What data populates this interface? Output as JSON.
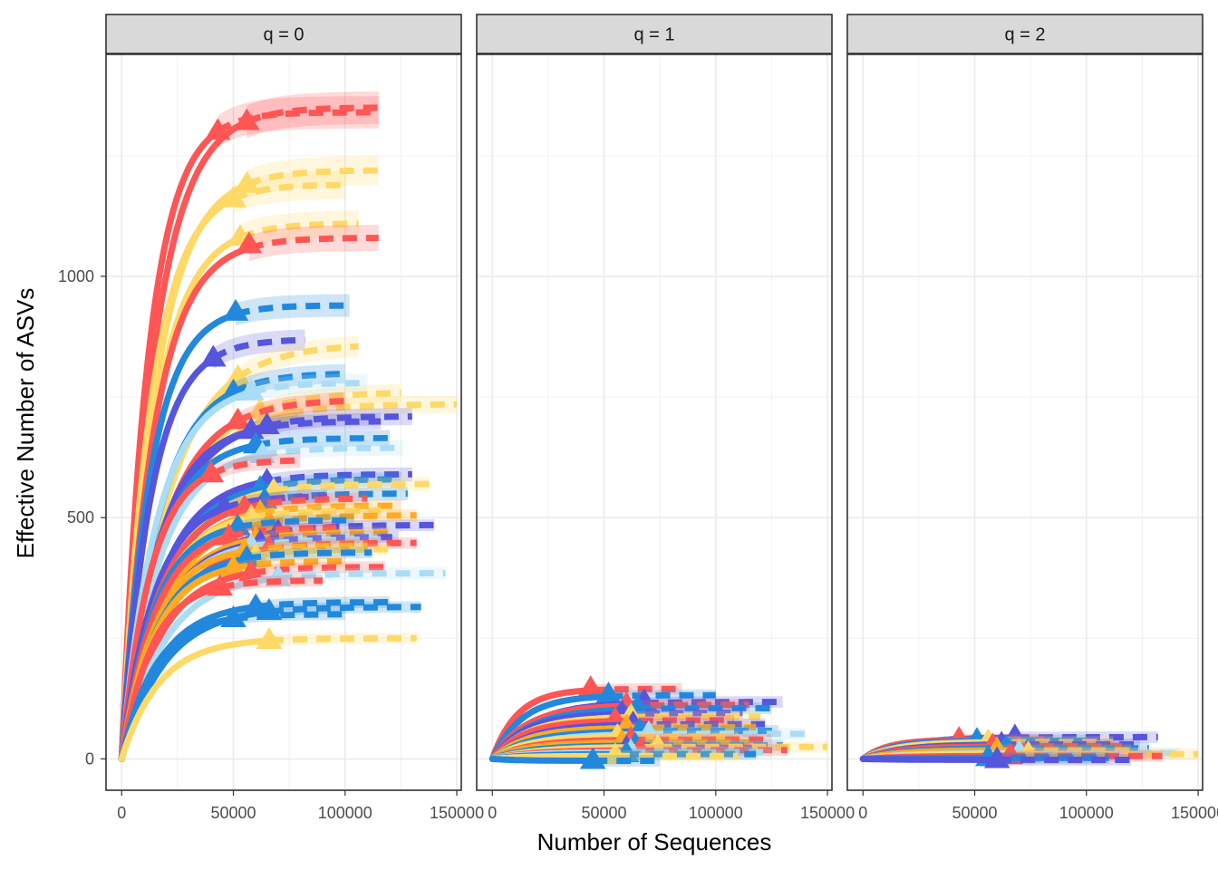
{
  "chart_data": {
    "type": "line",
    "xlabel": "Number of Sequences",
    "ylabel": "Effective Number of ASVs",
    "x_ticks": [
      0,
      50000,
      100000,
      150000
    ],
    "x_tick_labels": [
      "0",
      "50000",
      "100000",
      "150000"
    ],
    "y_ticks": [
      0,
      500,
      1000
    ],
    "y_tick_labels": [
      "0",
      "500",
      "1000"
    ],
    "xlim": [
      -7000,
      152000
    ],
    "ylim": [
      -65,
      1460
    ],
    "grid": true,
    "legend": "none",
    "colors": {
      "red": "#FF5555",
      "yellow": "#FFD966",
      "blue": "#2288DD",
      "purple": "#5555DD",
      "lightblue": "#AADDF5",
      "orange": "#FFAA22"
    },
    "panels": [
      {
        "label": "q = 0",
        "samples": [
          {
            "color": "red",
            "obs_x": 43000,
            "obs_y": 1300,
            "asym": 1340,
            "ext_x": 115000
          },
          {
            "color": "red",
            "obs_x": 56000,
            "obs_y": 1320,
            "asym": 1350,
            "ext_x": 115000
          },
          {
            "color": "yellow",
            "obs_x": 56000,
            "obs_y": 1190,
            "asym": 1220,
            "ext_x": 115000
          },
          {
            "color": "yellow",
            "obs_x": 50000,
            "obs_y": 1160,
            "asym": 1190,
            "ext_x": 100000
          },
          {
            "color": "yellow",
            "obs_x": 53000,
            "obs_y": 1080,
            "asym": 1110,
            "ext_x": 106000
          },
          {
            "color": "red",
            "obs_x": 57000,
            "obs_y": 1065,
            "asym": 1080,
            "ext_x": 115000
          },
          {
            "color": "blue",
            "obs_x": 51000,
            "obs_y": 925,
            "asym": 940,
            "ext_x": 102000
          },
          {
            "color": "purple",
            "obs_x": 41000,
            "obs_y": 830,
            "asym": 870,
            "ext_x": 82000
          },
          {
            "color": "yellow",
            "obs_x": 52000,
            "obs_y": 790,
            "asym": 860,
            "ext_x": 106000
          },
          {
            "color": "blue",
            "obs_x": 50000,
            "obs_y": 760,
            "asym": 800,
            "ext_x": 100000
          },
          {
            "color": "lightblue",
            "obs_x": 58000,
            "obs_y": 760,
            "asym": 780,
            "ext_x": 110000
          },
          {
            "color": "yellow",
            "obs_x": 62000,
            "obs_y": 720,
            "asym": 760,
            "ext_x": 125000
          },
          {
            "color": "yellow",
            "obs_x": 75000,
            "obs_y": 715,
            "asym": 735,
            "ext_x": 150000
          },
          {
            "color": "red",
            "obs_x": 52000,
            "obs_y": 700,
            "asym": 745,
            "ext_x": 100000
          },
          {
            "color": "purple",
            "obs_x": 65000,
            "obs_y": 690,
            "asym": 710,
            "ext_x": 130000
          },
          {
            "color": "purple",
            "obs_x": 58000,
            "obs_y": 680,
            "asym": 700,
            "ext_x": 116000
          },
          {
            "color": "blue",
            "obs_x": 60000,
            "obs_y": 650,
            "asym": 665,
            "ext_x": 120000
          },
          {
            "color": "lightblue",
            "obs_x": 63000,
            "obs_y": 630,
            "asym": 645,
            "ext_x": 126000
          },
          {
            "color": "red",
            "obs_x": 40000,
            "obs_y": 590,
            "asym": 620,
            "ext_x": 80000
          },
          {
            "color": "purple",
            "obs_x": 65000,
            "obs_y": 575,
            "asym": 590,
            "ext_x": 130000
          },
          {
            "color": "blue",
            "obs_x": 62000,
            "obs_y": 560,
            "asym": 580,
            "ext_x": 125000
          },
          {
            "color": "yellow",
            "obs_x": 68000,
            "obs_y": 555,
            "asym": 570,
            "ext_x": 138000
          },
          {
            "color": "blue",
            "obs_x": 64000,
            "obs_y": 535,
            "asym": 550,
            "ext_x": 128000
          },
          {
            "color": "purple",
            "obs_x": 46000,
            "obs_y": 520,
            "asym": 545,
            "ext_x": 92000
          },
          {
            "color": "red",
            "obs_x": 55000,
            "obs_y": 520,
            "asym": 540,
            "ext_x": 110000
          },
          {
            "color": "orange",
            "obs_x": 62000,
            "obs_y": 510,
            "asym": 525,
            "ext_x": 125000
          },
          {
            "color": "yellow",
            "obs_x": 58000,
            "obs_y": 500,
            "asym": 515,
            "ext_x": 116000
          },
          {
            "color": "orange",
            "obs_x": 66000,
            "obs_y": 490,
            "asym": 505,
            "ext_x": 132000
          },
          {
            "color": "blue",
            "obs_x": 52000,
            "obs_y": 480,
            "asym": 495,
            "ext_x": 104000
          },
          {
            "color": "purple",
            "obs_x": 70000,
            "obs_y": 470,
            "asym": 485,
            "ext_x": 140000
          },
          {
            "color": "red",
            "obs_x": 48000,
            "obs_y": 460,
            "asym": 480,
            "ext_x": 96000
          },
          {
            "color": "orange",
            "obs_x": 60000,
            "obs_y": 455,
            "asym": 470,
            "ext_x": 120000
          },
          {
            "color": "purple",
            "obs_x": 62000,
            "obs_y": 448,
            "asym": 460,
            "ext_x": 124000
          },
          {
            "color": "lightblue",
            "obs_x": 58000,
            "obs_y": 440,
            "asym": 455,
            "ext_x": 116000
          },
          {
            "color": "red",
            "obs_x": 66000,
            "obs_y": 435,
            "asym": 448,
            "ext_x": 132000
          },
          {
            "color": "orange",
            "obs_x": 55000,
            "obs_y": 430,
            "asym": 442,
            "ext_x": 110000
          },
          {
            "color": "yellow",
            "obs_x": 60000,
            "obs_y": 420,
            "asym": 435,
            "ext_x": 120000
          },
          {
            "color": "blue",
            "obs_x": 56000,
            "obs_y": 415,
            "asym": 428,
            "ext_x": 112000
          },
          {
            "color": "orange",
            "obs_x": 50000,
            "obs_y": 395,
            "asym": 410,
            "ext_x": 100000
          },
          {
            "color": "red",
            "obs_x": 58000,
            "obs_y": 385,
            "asym": 398,
            "ext_x": 118000
          },
          {
            "color": "lightblue",
            "obs_x": 70000,
            "obs_y": 375,
            "asym": 385,
            "ext_x": 145000
          },
          {
            "color": "red",
            "obs_x": 44000,
            "obs_y": 355,
            "asym": 370,
            "ext_x": 90000
          },
          {
            "color": "blue",
            "obs_x": 60000,
            "obs_y": 315,
            "asym": 325,
            "ext_x": 120000
          },
          {
            "color": "blue",
            "obs_x": 66000,
            "obs_y": 305,
            "asym": 315,
            "ext_x": 134000
          },
          {
            "color": "blue",
            "obs_x": 50000,
            "obs_y": 290,
            "asym": 300,
            "ext_x": 100000
          },
          {
            "color": "yellow",
            "obs_x": 66000,
            "obs_y": 245,
            "asym": 250,
            "ext_x": 132000
          }
        ]
      },
      {
        "label": "q = 1",
        "samples": [
          {
            "color": "red",
            "obs_x": 44000,
            "obs_y": 145,
            "asym": 145,
            "ext_x": 85000
          },
          {
            "color": "blue",
            "obs_x": 52000,
            "obs_y": 132,
            "asym": 132,
            "ext_x": 100000
          },
          {
            "color": "purple",
            "obs_x": 68000,
            "obs_y": 118,
            "asym": 118,
            "ext_x": 130000
          },
          {
            "color": "red",
            "obs_x": 60000,
            "obs_y": 112,
            "asym": 112,
            "ext_x": 115000
          },
          {
            "color": "blue",
            "obs_x": 65000,
            "obs_y": 105,
            "asym": 105,
            "ext_x": 125000
          },
          {
            "color": "purple",
            "obs_x": 58000,
            "obs_y": 95,
            "asym": 95,
            "ext_x": 112000
          },
          {
            "color": "yellow",
            "obs_x": 62000,
            "obs_y": 88,
            "asym": 88,
            "ext_x": 120000
          },
          {
            "color": "red",
            "obs_x": 55000,
            "obs_y": 80,
            "asym": 80,
            "ext_x": 108000
          },
          {
            "color": "purple",
            "obs_x": 63000,
            "obs_y": 72,
            "asym": 72,
            "ext_x": 122000
          },
          {
            "color": "orange",
            "obs_x": 60000,
            "obs_y": 65,
            "asym": 65,
            "ext_x": 118000
          },
          {
            "color": "blue",
            "obs_x": 66000,
            "obs_y": 58,
            "asym": 58,
            "ext_x": 128000
          },
          {
            "color": "lightblue",
            "obs_x": 70000,
            "obs_y": 52,
            "asym": 52,
            "ext_x": 140000
          },
          {
            "color": "yellow",
            "obs_x": 56000,
            "obs_y": 46,
            "asym": 46,
            "ext_x": 110000
          },
          {
            "color": "red",
            "obs_x": 62000,
            "obs_y": 40,
            "asym": 40,
            "ext_x": 125000
          },
          {
            "color": "orange",
            "obs_x": 58000,
            "obs_y": 34,
            "asym": 34,
            "ext_x": 115000
          },
          {
            "color": "blue",
            "obs_x": 64000,
            "obs_y": 28,
            "asym": 28,
            "ext_x": 130000
          },
          {
            "color": "purple",
            "obs_x": 60000,
            "obs_y": 22,
            "asym": 22,
            "ext_x": 120000
          },
          {
            "color": "yellow",
            "obs_x": 74000,
            "obs_y": 25,
            "asym": 25,
            "ext_x": 150000
          },
          {
            "color": "red",
            "obs_x": 66000,
            "obs_y": 18,
            "asym": 18,
            "ext_x": 132000
          },
          {
            "color": "lightblue",
            "obs_x": 62000,
            "obs_y": 14,
            "asym": 14,
            "ext_x": 125000
          },
          {
            "color": "blue",
            "obs_x": 60000,
            "obs_y": 10,
            "asym": 10,
            "ext_x": 118000
          },
          {
            "color": "yellow",
            "obs_x": 55000,
            "obs_y": 6,
            "asym": 6,
            "ext_x": 110000
          },
          {
            "color": "blue",
            "obs_x": 45000,
            "obs_y": -4,
            "asym": -4,
            "ext_x": 75000
          }
        ]
      },
      {
        "label": "q = 2",
        "samples": [
          {
            "color": "purple",
            "obs_x": 68000,
            "obs_y": 45,
            "asym": 45,
            "ext_x": 132000
          },
          {
            "color": "red",
            "obs_x": 43000,
            "obs_y": 40,
            "asym": 40,
            "ext_x": 85000
          },
          {
            "color": "blue",
            "obs_x": 51000,
            "obs_y": 38,
            "asym": 38,
            "ext_x": 100000
          },
          {
            "color": "yellow",
            "obs_x": 56000,
            "obs_y": 35,
            "asym": 35,
            "ext_x": 112000
          },
          {
            "color": "purple",
            "obs_x": 62000,
            "obs_y": 30,
            "asym": 30,
            "ext_x": 124000
          },
          {
            "color": "red",
            "obs_x": 58000,
            "obs_y": 26,
            "asym": 26,
            "ext_x": 116000
          },
          {
            "color": "blue",
            "obs_x": 64000,
            "obs_y": 22,
            "asym": 22,
            "ext_x": 128000
          },
          {
            "color": "orange",
            "obs_x": 60000,
            "obs_y": 18,
            "asym": 18,
            "ext_x": 120000
          },
          {
            "color": "lightblue",
            "obs_x": 70000,
            "obs_y": 12,
            "asym": 12,
            "ext_x": 142000
          },
          {
            "color": "yellow",
            "obs_x": 74000,
            "obs_y": 10,
            "asym": 10,
            "ext_x": 150000
          },
          {
            "color": "red",
            "obs_x": 66000,
            "obs_y": 6,
            "asym": 6,
            "ext_x": 134000
          },
          {
            "color": "blue",
            "obs_x": 56000,
            "obs_y": 2,
            "asym": 2,
            "ext_x": 110000
          },
          {
            "color": "purple",
            "obs_x": 60000,
            "obs_y": -2,
            "asym": -2,
            "ext_x": 120000
          }
        ]
      }
    ]
  }
}
